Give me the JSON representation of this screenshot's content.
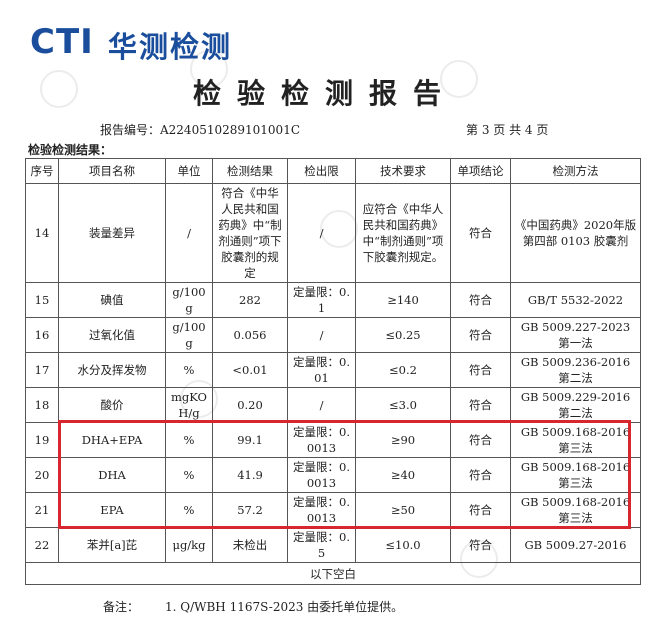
{
  "logo": {
    "mark": "CTI",
    "name": "华测检测"
  },
  "title": "检验检测报告",
  "report_no": "报告编号：A2240510289101001C",
  "page": "第 3 页 共 4 页",
  "section": "检验检测结果：",
  "table": {
    "header": [
      "序号",
      "项目名称",
      "单位",
      "检测结果",
      "检出限",
      "技术要求",
      "单项结论",
      "检测方法"
    ],
    "rows": [
      [
        "14",
        "装量差异",
        "/",
        "符合《中华人民共和国药典》中“制剂通则”项下胶囊剂的规定",
        "/",
        "应符合《中华人民共和国药典》中“制剂通则”项下胶囊剂规定。",
        "符合",
        "《中国药典》2020年版 第四部 0103 胶囊剂"
      ],
      [
        "15",
        "碘值",
        "g/100g",
        "282",
        "定量限：0.1",
        "≥140",
        "符合",
        "GB/T 5532-2022"
      ],
      [
        "16",
        "过氧化值",
        "g/100g",
        "0.056",
        "/",
        "≤0.25",
        "符合",
        "GB 5009.227-2023 第一法"
      ],
      [
        "17",
        "水分及挥发物",
        "%",
        "<0.01",
        "定量限：0.01",
        "≤0.2",
        "符合",
        "GB 5009.236-2016 第二法"
      ],
      [
        "18",
        "酸价",
        "mgKOH/g",
        "0.20",
        "/",
        "≤3.0",
        "符合",
        "GB 5009.229-2016 第二法"
      ],
      [
        "19",
        "DHA+EPA",
        "%",
        "99.1",
        "定量限：0.0013",
        "≥90",
        "符合",
        "GB 5009.168-2016 第三法"
      ],
      [
        "20",
        "DHA",
        "%",
        "41.9",
        "定量限：0.0013",
        "≥40",
        "符合",
        "GB 5009.168-2016 第三法"
      ],
      [
        "21",
        "EPA",
        "%",
        "57.2",
        "定量限：0.0013",
        "≥50",
        "符合",
        "GB 5009.168-2016 第三法"
      ],
      [
        "22",
        "苯并[a]芘",
        "μg/kg",
        "未检出",
        "定量限：0.5",
        "≤10.0",
        "符合",
        "GB 5009.27-2016"
      ]
    ],
    "footer": "以下空白"
  },
  "notes": {
    "label": "备注：",
    "text": "1. Q/WBH 1167S-2023 由委托单位提供。"
  }
}
